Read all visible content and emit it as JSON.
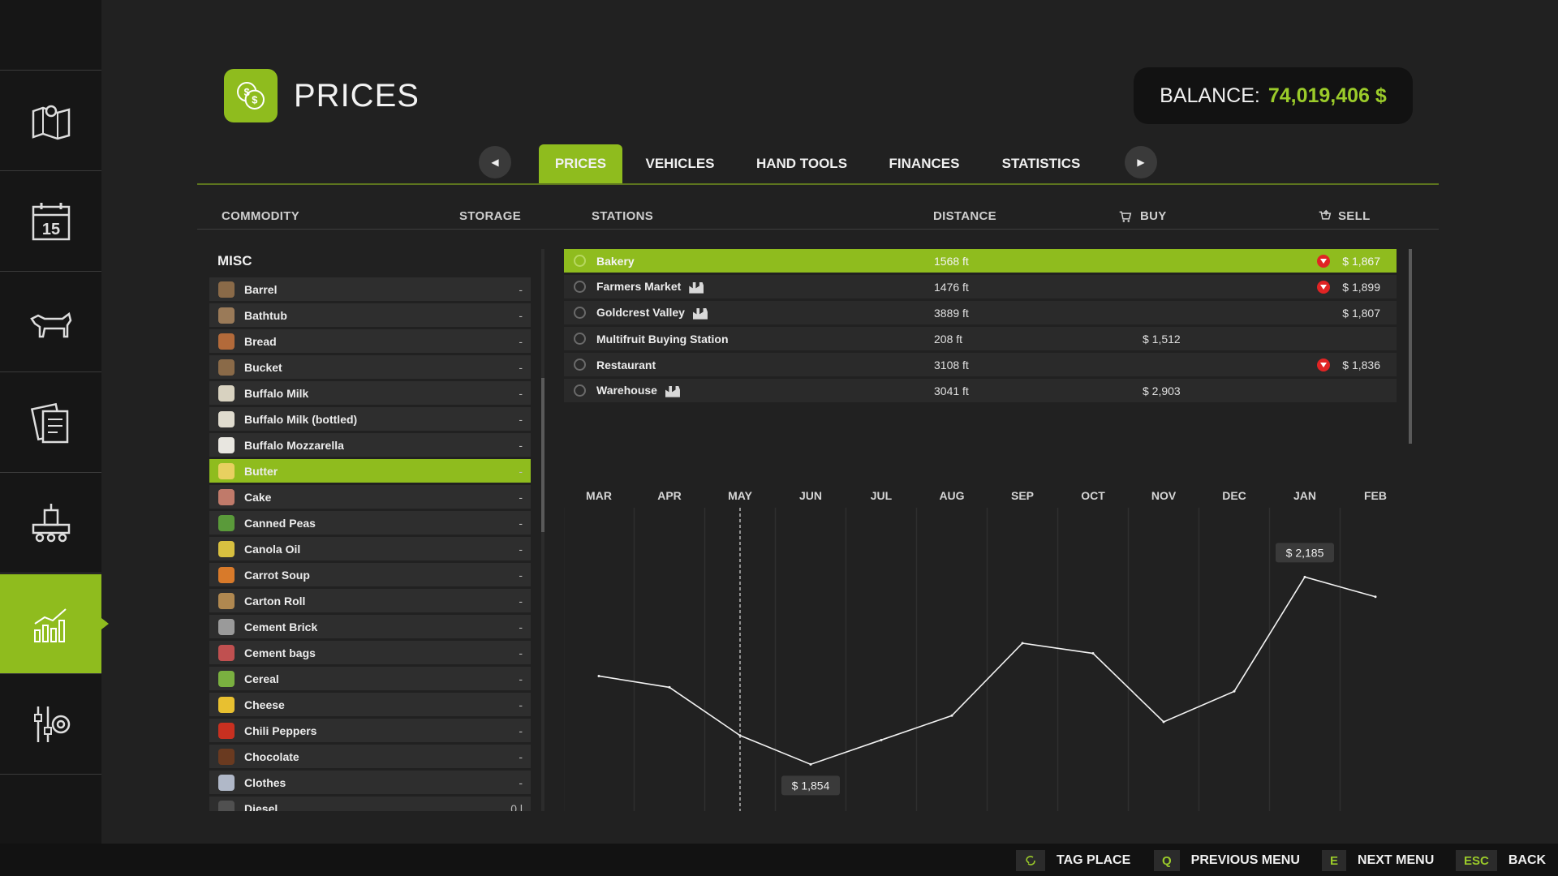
{
  "page": {
    "title": "PRICES",
    "balance_label": "BALANCE:",
    "balance_value": "74,019,406 $"
  },
  "sidebar": {
    "items": [
      {
        "icon": "map-icon"
      },
      {
        "icon": "calendar-icon",
        "label": "15"
      },
      {
        "icon": "animals-icon"
      },
      {
        "icon": "contracts-icon"
      },
      {
        "icon": "production-icon"
      },
      {
        "icon": "prices-chart-icon",
        "active": true
      },
      {
        "icon": "settings-icon"
      }
    ]
  },
  "tabs": [
    {
      "label": "PRICES",
      "active": true
    },
    {
      "label": "VEHICLES"
    },
    {
      "label": "HAND TOOLS"
    },
    {
      "label": "FINANCES"
    },
    {
      "label": "STATISTICS"
    }
  ],
  "columns": {
    "commodity": "COMMODITY",
    "storage": "STORAGE",
    "stations": "STATIONS",
    "distance": "DISTANCE",
    "buy": "BUY",
    "sell": "SELL"
  },
  "commodities": {
    "group_label": "MISC",
    "items": [
      {
        "name": "Barrel",
        "storage": "-",
        "color": "#8a6a48"
      },
      {
        "name": "Bathtub",
        "storage": "-",
        "color": "#9a7a58"
      },
      {
        "name": "Bread",
        "storage": "-",
        "color": "#b36a3a"
      },
      {
        "name": "Bucket",
        "storage": "-",
        "color": "#8a6a48"
      },
      {
        "name": "Buffalo Milk",
        "storage": "-",
        "color": "#d8d2c0"
      },
      {
        "name": "Buffalo Milk (bottled)",
        "storage": "-",
        "color": "#e0dccf"
      },
      {
        "name": "Buffalo Mozzarella",
        "storage": "-",
        "color": "#e8e6e0"
      },
      {
        "name": "Butter",
        "storage": "-",
        "color": "#e8d060",
        "selected": true
      },
      {
        "name": "Cake",
        "storage": "-",
        "color": "#c07a6a"
      },
      {
        "name": "Canned Peas",
        "storage": "-",
        "color": "#5a9a3a"
      },
      {
        "name": "Canola Oil",
        "storage": "-",
        "color": "#d8c040"
      },
      {
        "name": "Carrot Soup",
        "storage": "-",
        "color": "#d87a2a"
      },
      {
        "name": "Carton Roll",
        "storage": "-",
        "color": "#b08850"
      },
      {
        "name": "Cement Brick",
        "storage": "-",
        "color": "#9a9a9a"
      },
      {
        "name": "Cement bags",
        "storage": "-",
        "color": "#c05050"
      },
      {
        "name": "Cereal",
        "storage": "-",
        "color": "#7ab040"
      },
      {
        "name": "Cheese",
        "storage": "-",
        "color": "#e8c030"
      },
      {
        "name": "Chili Peppers",
        "storage": "-",
        "color": "#c83020"
      },
      {
        "name": "Chocolate",
        "storage": "-",
        "color": "#6a3a20"
      },
      {
        "name": "Clothes",
        "storage": "-",
        "color": "#b0b8c8"
      },
      {
        "name": "Diesel",
        "storage": "0 l",
        "color": "#505050"
      }
    ]
  },
  "stations": [
    {
      "name": "Bakery",
      "distance": "1568 ft",
      "buy": "",
      "sell": "$ 1,867",
      "trend": true,
      "badge": false,
      "selected": true
    },
    {
      "name": "Farmers Market",
      "distance": "1476 ft",
      "buy": "",
      "sell": "$ 1,899",
      "trend": true,
      "badge": true
    },
    {
      "name": "Goldcrest Valley",
      "distance": "3889 ft",
      "buy": "",
      "sell": "$ 1,807",
      "trend": false,
      "badge": true
    },
    {
      "name": "Multifruit Buying Station",
      "distance": "208 ft",
      "buy": "$ 1,512",
      "sell": "",
      "trend": false,
      "badge": false
    },
    {
      "name": "Restaurant",
      "distance": "3108 ft",
      "buy": "",
      "sell": "$ 1,836",
      "trend": true,
      "badge": false
    },
    {
      "name": "Warehouse",
      "distance": "3041 ft",
      "buy": "$ 2,903",
      "sell": "",
      "trend": false,
      "badge": true
    }
  ],
  "chart_data": {
    "type": "line",
    "title": "",
    "xlabel": "",
    "ylabel": "",
    "categories": [
      "MAR",
      "APR",
      "MAY",
      "JUN",
      "JUL",
      "AUG",
      "SEP",
      "OCT",
      "NOV",
      "DEC",
      "JAN",
      "FEB"
    ],
    "values": [
      2010,
      1990,
      1905,
      1854,
      1897,
      1940,
      2068,
      2050,
      1929,
      1983,
      2185,
      2150
    ],
    "ylim": [
      1800,
      2250
    ],
    "current_month": "MAY",
    "annotations": [
      {
        "category": "JUN",
        "label": "$ 1,854"
      },
      {
        "category": "JAN",
        "label": "$ 2,185"
      }
    ],
    "grid": true
  },
  "hints": [
    {
      "key": "",
      "label": "TAG PLACE",
      "key_icon": "tag-icon"
    },
    {
      "key": "Q",
      "label": "PREVIOUS MENU"
    },
    {
      "key": "E",
      "label": "NEXT MENU"
    },
    {
      "key": "ESC",
      "label": "BACK"
    }
  ]
}
